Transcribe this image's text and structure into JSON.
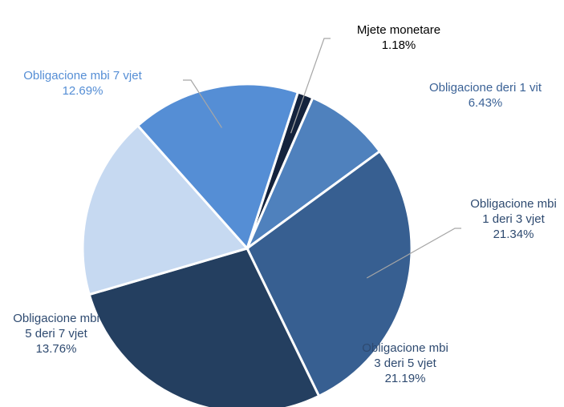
{
  "chart_data": {
    "type": "pie",
    "categories": [
      "Mjete monetare",
      "Obligacione deri 1 vit",
      "Obligacione mbi 1 deri 3 vjet",
      "Obligacione mbi 3 deri 5 vjet",
      "Obligacione mbi 5 deri 7 vjet",
      "Obligacione mbi 7 vjet"
    ],
    "values": [
      1.18,
      6.43,
      21.34,
      21.19,
      13.76,
      12.69
    ],
    "value_labels": [
      "1.18%",
      "6.43%",
      "21.34%",
      "21.19%",
      "13.76%",
      "12.69%"
    ],
    "colors": [
      "#14233d",
      "#4f81bd",
      "#375f91",
      "#243f60",
      "#c6d9f1",
      "#558ed5"
    ]
  }
}
